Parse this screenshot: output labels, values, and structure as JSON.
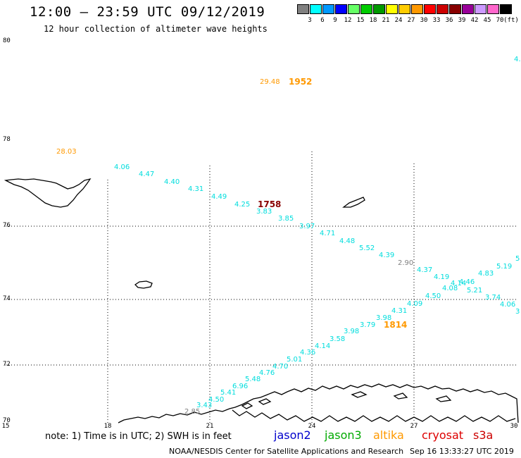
{
  "header": {
    "title": "12:00 — 23:59 UTC 09/12/2019",
    "subtitle": "12 hour collection of altimeter wave heights"
  },
  "colorbar": {
    "unit": "(ft)",
    "colors": [
      "#808080",
      "#00ffff",
      "#0099ff",
      "#0000ff",
      "#66ff66",
      "#00cc00",
      "#009900",
      "#ffff00",
      "#ffcc00",
      "#ff9900",
      "#ff0000",
      "#cc0000",
      "#880000",
      "#990099",
      "#cc99ff",
      "#ff66cc",
      "#000000"
    ],
    "labels": [
      "3",
      "6",
      "9",
      "12",
      "15",
      "18",
      "21",
      "24",
      "27",
      "30",
      "33",
      "36",
      "39",
      "42",
      "45",
      "70"
    ]
  },
  "axes": {
    "lat_labels": [
      "80",
      "78",
      "76",
      "74",
      "72",
      "70"
    ],
    "lon_labels": [
      "15",
      "18",
      "21",
      "24",
      "27",
      "30"
    ]
  },
  "satellite_legend": [
    {
      "name": "jason2",
      "color": "#0000cc"
    },
    {
      "name": "jason3",
      "color": "#00aa00"
    },
    {
      "name": "altika",
      "color": "#ff9900"
    },
    {
      "name": "cryosat",
      "color": "#dd0000"
    },
    {
      "name": "s3a",
      "color": "#cc0000"
    }
  ],
  "note": "note: 1) Time is in UTC; 2) SWH is in feet",
  "footer": {
    "center": "NOAA/NESDIS Center for Satellite Applications and Research",
    "timestamp": "Sep 16 13:33:27 UTC 2019"
  },
  "pass_times": [
    {
      "text": "1952",
      "color": "#ff9900"
    },
    {
      "text": "1758",
      "color": "#880000"
    },
    {
      "text": "1814",
      "color": "#ff9900"
    }
  ],
  "wave_values": [
    {
      "text": "29.48",
      "color": "#ff9900"
    },
    {
      "text": "28.03",
      "color": "#ff9900"
    },
    {
      "text": "4.",
      "color": "#00dddd"
    },
    {
      "text": "4.06",
      "color": "#00dddd"
    },
    {
      "text": "4.47",
      "color": "#00dddd"
    },
    {
      "text": "4.40",
      "color": "#00dddd"
    },
    {
      "text": "4.31",
      "color": "#00dddd"
    },
    {
      "text": "4.49",
      "color": "#00dddd"
    },
    {
      "text": "4.25",
      "color": "#00dddd"
    },
    {
      "text": "3.83",
      "color": "#00dddd"
    },
    {
      "text": "3.85",
      "color": "#00dddd"
    },
    {
      "text": "3.97",
      "color": "#00dddd"
    },
    {
      "text": "4.71",
      "color": "#00dddd"
    },
    {
      "text": "4.48",
      "color": "#00dddd"
    },
    {
      "text": "5.52",
      "color": "#00dddd"
    },
    {
      "text": "4.39",
      "color": "#00dddd"
    },
    {
      "text": "2.90",
      "color": "#808080"
    },
    {
      "text": "4.37",
      "color": "#00dddd"
    },
    {
      "text": "4.19",
      "color": "#00dddd"
    },
    {
      "text": "4.08",
      "color": "#00dddd"
    },
    {
      "text": "4.14",
      "color": "#00dddd"
    },
    {
      "text": "4.46",
      "color": "#00dddd"
    },
    {
      "text": "4.83",
      "color": "#00dddd"
    },
    {
      "text": "5.19",
      "color": "#00dddd"
    },
    {
      "text": "5",
      "color": "#00dddd"
    },
    {
      "text": "5.21",
      "color": "#00dddd"
    },
    {
      "text": "3.74",
      "color": "#00dddd"
    },
    {
      "text": "4.06",
      "color": "#00dddd"
    },
    {
      "text": "3",
      "color": "#00dddd"
    },
    {
      "text": "4.50",
      "color": "#00dddd"
    },
    {
      "text": "4.09",
      "color": "#00dddd"
    },
    {
      "text": "4.31",
      "color": "#00dddd"
    },
    {
      "text": "3.98",
      "color": "#00dddd"
    },
    {
      "text": "3.79",
      "color": "#00dddd"
    },
    {
      "text": "3.98",
      "color": "#00dddd"
    },
    {
      "text": "3.58",
      "color": "#00dddd"
    },
    {
      "text": "4.14",
      "color": "#00dddd"
    },
    {
      "text": "4.36",
      "color": "#00dddd"
    },
    {
      "text": "5.01",
      "color": "#00dddd"
    },
    {
      "text": "4.70",
      "color": "#00dddd"
    },
    {
      "text": "4.76",
      "color": "#00dddd"
    },
    {
      "text": "5.48",
      "color": "#00dddd"
    },
    {
      "text": "6.96",
      "color": "#00dddd"
    },
    {
      "text": "5.41",
      "color": "#00dddd"
    },
    {
      "text": "4.50",
      "color": "#00dddd"
    },
    {
      "text": "3.43",
      "color": "#00dddd"
    },
    {
      "text": "2.85",
      "color": "#808080"
    }
  ]
}
